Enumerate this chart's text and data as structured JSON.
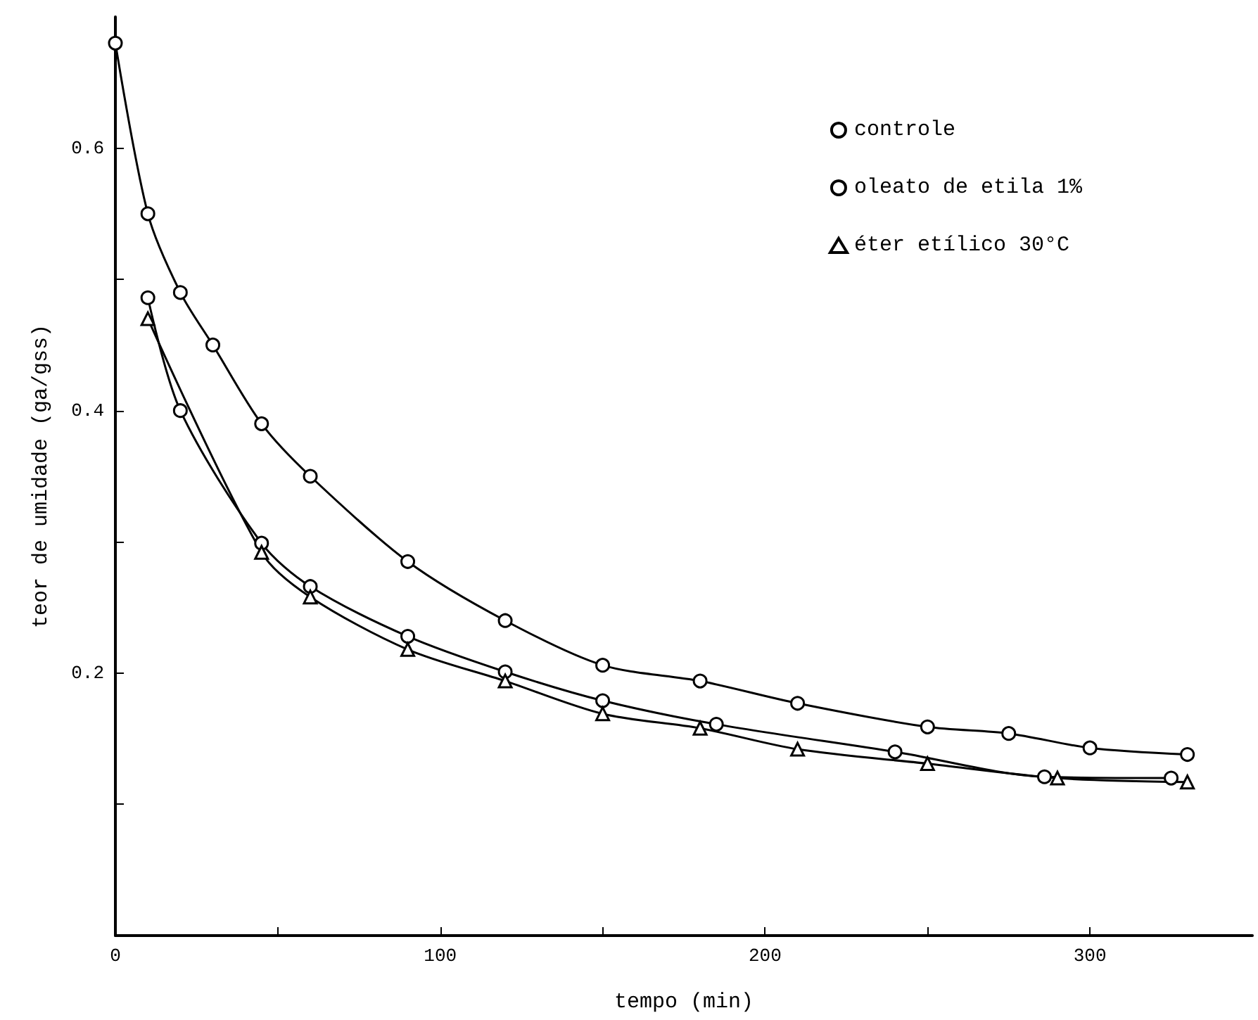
{
  "chart_data": {
    "type": "line",
    "xlabel": "tempo (min)",
    "ylabel": "teor de umidade (ga/gss)",
    "xlim": [
      0,
      350
    ],
    "xticks": [
      0,
      {
        "value": 50,
        "label": null
      },
      100,
      {
        "value": 150,
        "label": null
      },
      200,
      {
        "value": 250,
        "label": null
      },
      300
    ],
    "ylim": [
      0,
      0.7
    ],
    "yticks": [
      {
        "value": 0,
        "label": null
      },
      {
        "value": 0.1,
        "label": null
      },
      0.2,
      {
        "value": 0.3,
        "label": null
      },
      0.4,
      {
        "value": 0.5,
        "label": null
      },
      0.6
    ],
    "grid": false,
    "legend": "top right",
    "line_style": "solid",
    "series": [
      {
        "name": "controle",
        "color": "#000000",
        "marker": "circle",
        "x": [
          0,
          10,
          20,
          30,
          45,
          60,
          90,
          120,
          150,
          180,
          210,
          250,
          275,
          300,
          330
        ],
        "values": [
          0.68,
          0.55,
          0.49,
          0.45,
          0.39,
          0.35,
          0.285,
          0.24,
          0.206,
          0.194,
          0.177,
          0.159,
          0.154,
          0.143,
          0.138
        ]
      },
      {
        "name": "oleato de etila 1%",
        "color": "#000000",
        "marker": "circle",
        "x": [
          10,
          20,
          45,
          60,
          90,
          120,
          150,
          185,
          240,
          286,
          325
        ],
        "values": [
          0.486,
          0.4,
          0.299,
          0.266,
          0.228,
          0.201,
          0.179,
          0.161,
          0.14,
          0.121,
          0.12
        ]
      },
      {
        "name": "éter etílico 30°C",
        "color": "#000000",
        "marker": "triangle",
        "x": [
          10,
          45,
          60,
          90,
          120,
          150,
          180,
          210,
          250,
          290,
          330
        ],
        "values": [
          0.47,
          0.292,
          0.258,
          0.218,
          0.194,
          0.169,
          0.158,
          0.142,
          0.131,
          0.12,
          0.117
        ]
      }
    ]
  }
}
